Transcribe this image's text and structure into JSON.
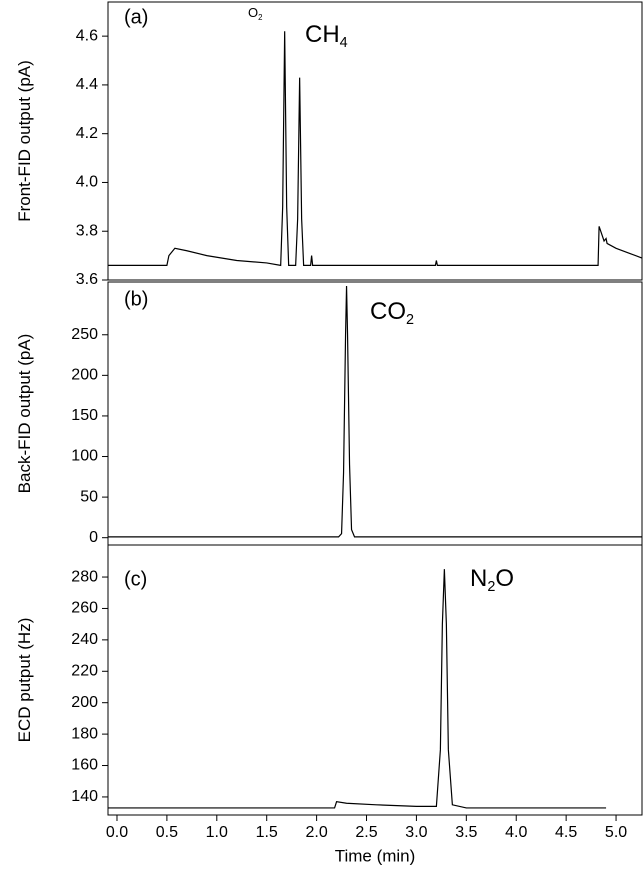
{
  "chart_data": [
    {
      "type": "line",
      "panel_label": "(a)",
      "ylabel": "Front-FID output (pA)",
      "xlim": [
        -0.09,
        5.26
      ],
      "ylim": [
        3.6,
        4.74
      ],
      "yticks": [
        3.6,
        3.8,
        {
          "value": 4.0,
          "label": "4.0"
        },
        4.2,
        4.4,
        4.6
      ],
      "annotations": [
        {
          "parts": [
            "O",
            "2"
          ]
        },
        {
          "parts": [
            "CH",
            "4"
          ]
        }
      ],
      "series": [
        {
          "color": "#000000",
          "x": [
            -0.09,
            0.5,
            0.52,
            0.58,
            0.7,
            0.9,
            1.2,
            1.5,
            1.64,
            1.66,
            1.68,
            1.7,
            1.72,
            1.79,
            1.81,
            1.83,
            1.85,
            1.87,
            1.94,
            1.95,
            1.96,
            2.5,
            3.19,
            3.2,
            3.21,
            4.0,
            4.82,
            4.83,
            4.88,
            4.9,
            4.91,
            5.0,
            5.26
          ],
          "values": [
            3.66,
            3.66,
            3.7,
            3.73,
            3.72,
            3.7,
            3.68,
            3.67,
            3.66,
            3.9,
            4.62,
            3.9,
            3.66,
            3.66,
            3.85,
            4.43,
            3.85,
            3.66,
            3.66,
            3.7,
            3.66,
            3.66,
            3.66,
            3.68,
            3.66,
            3.66,
            3.66,
            3.82,
            3.76,
            3.77,
            3.75,
            3.73,
            3.69
          ]
        }
      ]
    },
    {
      "type": "line",
      "panel_label": "(b)",
      "ylabel": "Back-FID output (pA)",
      "xlim": [
        -0.09,
        5.26
      ],
      "ylim": [
        -9,
        315
      ],
      "yticks": [
        0,
        50,
        100,
        150,
        200,
        250
      ],
      "annotations": [
        {
          "parts": [
            "CO",
            "2"
          ]
        }
      ],
      "series": [
        {
          "color": "#000000",
          "x": [
            -0.09,
            2.22,
            2.25,
            2.27,
            2.29,
            2.3,
            2.31,
            2.33,
            2.35,
            2.38,
            5.26
          ],
          "values": [
            1,
            1,
            5,
            80,
            250,
            310,
            250,
            90,
            10,
            1,
            1
          ]
        }
      ]
    },
    {
      "type": "line",
      "panel_label": "(c)",
      "ylabel": "ECD putput (Hz)",
      "xlim": [
        -0.09,
        5.26
      ],
      "ylim": [
        128.5,
        300.4
      ],
      "yticks": [
        140,
        160,
        180,
        200,
        220,
        240,
        260,
        280
      ],
      "xlabel": "Time (min)",
      "xticks": [
        {
          "value": 0,
          "label": "0.0"
        },
        0.5,
        {
          "value": 1,
          "label": "1.0"
        },
        1.5,
        {
          "value": 2,
          "label": "2.0"
        },
        2.5,
        {
          "value": 3,
          "label": "3.0"
        },
        3.5,
        {
          "value": 4,
          "label": "4.0"
        },
        4.5,
        {
          "value": 5,
          "label": "5.0"
        }
      ],
      "annotations": [
        {
          "parts": [
            "N",
            "2",
            "O"
          ]
        }
      ],
      "series": [
        {
          "color": "#000000",
          "x": [
            -0.09,
            2.18,
            2.2,
            2.3,
            2.6,
            3.0,
            3.2,
            3.24,
            3.26,
            3.28,
            3.3,
            3.32,
            3.36,
            3.5,
            4.9
          ],
          "values": [
            133,
            133,
            137,
            136,
            135,
            134,
            134,
            170,
            250,
            285,
            250,
            170,
            135,
            133,
            133
          ]
        }
      ]
    }
  ]
}
